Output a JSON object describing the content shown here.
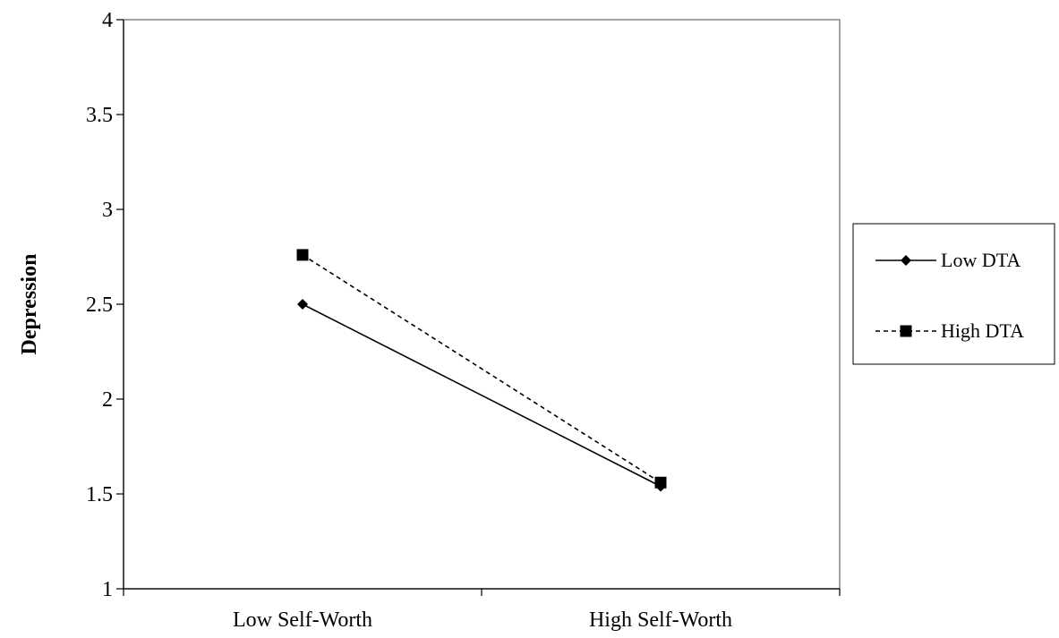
{
  "chart_data": {
    "type": "line",
    "title": "",
    "xlabel": "",
    "ylabel": "Depression",
    "categories": [
      "Low Self-Worth",
      "High Self-Worth"
    ],
    "ylim": [
      1,
      4
    ],
    "yticks": [
      "1",
      "1.5",
      "2",
      "2.5",
      "3",
      "3.5",
      "4"
    ],
    "grid": false,
    "legend_position": "right",
    "series": [
      {
        "name": "Low DTA",
        "values": [
          2.5,
          1.54
        ],
        "line_style": "solid",
        "marker": "diamond",
        "color": "#000000"
      },
      {
        "name": "High DTA",
        "values": [
          2.76,
          1.56
        ],
        "line_style": "dashed",
        "marker": "square",
        "color": "#000000"
      }
    ]
  }
}
